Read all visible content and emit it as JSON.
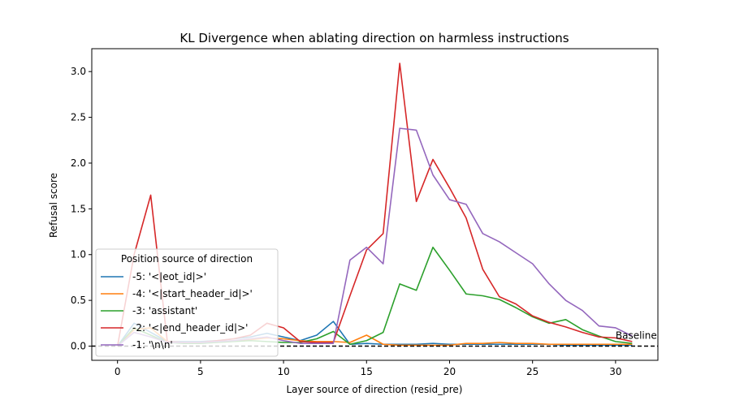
{
  "chart_data": {
    "type": "line",
    "title": "KL Divergence when ablating direction on harmless instructions",
    "xlabel": "Layer source of direction (resid_pre)",
    "ylabel": "Refusal score",
    "xlim": [
      -1.55,
      32.55
    ],
    "ylim": [
      -0.155,
      3.25
    ],
    "xticks": [
      0,
      5,
      10,
      15,
      20,
      25,
      30
    ],
    "yticks": [
      0.0,
      0.5,
      1.0,
      1.5,
      2.0,
      2.5,
      3.0
    ],
    "grid": false,
    "legend": {
      "title": "Position source of direction",
      "placement": "lower-left"
    },
    "baseline": {
      "value": 0,
      "label": "Baseline",
      "style": "dashed",
      "color": "#000000"
    },
    "x": [
      0,
      1,
      2,
      3,
      4,
      5,
      6,
      7,
      8,
      9,
      10,
      11,
      12,
      13,
      14,
      15,
      16,
      17,
      18,
      19,
      20,
      21,
      22,
      23,
      24,
      25,
      26,
      27,
      28,
      29,
      30,
      31
    ],
    "series": [
      {
        "name": "-5: '<|eot_id|>'",
        "color": "#1f77b4",
        "values": [
          0.0,
          0.25,
          0.15,
          0.05,
          0.05,
          0.05,
          0.06,
          0.08,
          0.1,
          0.14,
          0.1,
          0.06,
          0.12,
          0.27,
          0.02,
          0.03,
          0.02,
          0.02,
          0.02,
          0.03,
          0.02,
          0.02,
          0.02,
          0.02,
          0.02,
          0.02,
          0.02,
          0.01,
          0.01,
          0.01,
          0.01,
          0.01
        ]
      },
      {
        "name": "-4: '<|start_header_id|>'",
        "color": "#ff7f0e",
        "values": [
          0.0,
          0.18,
          0.2,
          0.05,
          0.04,
          0.04,
          0.05,
          0.06,
          0.07,
          0.09,
          0.08,
          0.06,
          0.05,
          0.05,
          0.04,
          0.12,
          0.02,
          0.01,
          0.01,
          0.01,
          0.01,
          0.03,
          0.03,
          0.04,
          0.03,
          0.03,
          0.02,
          0.02,
          0.02,
          0.02,
          0.02,
          0.02
        ]
      },
      {
        "name": "-3: 'assistant'",
        "color": "#2ca02c",
        "values": [
          0.0,
          0.2,
          0.12,
          0.04,
          0.03,
          0.03,
          0.04,
          0.05,
          0.06,
          0.05,
          0.04,
          0.04,
          0.08,
          0.16,
          0.02,
          0.06,
          0.15,
          0.68,
          0.61,
          1.08,
          0.83,
          0.57,
          0.55,
          0.51,
          0.42,
          0.32,
          0.25,
          0.29,
          0.18,
          0.11,
          0.05,
          0.03
        ]
      },
      {
        "name": "-2: '<|end_header_id|>'",
        "color": "#d62728",
        "values": [
          0.0,
          1.0,
          1.65,
          0.05,
          0.04,
          0.04,
          0.06,
          0.08,
          0.12,
          0.25,
          0.2,
          0.05,
          0.04,
          0.04,
          0.55,
          1.05,
          1.23,
          3.09,
          1.58,
          2.04,
          1.73,
          1.4,
          0.84,
          0.54,
          0.46,
          0.33,
          0.26,
          0.21,
          0.15,
          0.1,
          0.09,
          0.05
        ]
      },
      {
        "name": "-1: '\\n\\n'",
        "color": "#9467bd",
        "values": [
          0.0,
          0.15,
          0.1,
          0.04,
          0.04,
          0.04,
          0.05,
          0.06,
          0.08,
          0.1,
          0.06,
          0.03,
          0.03,
          0.03,
          0.94,
          1.08,
          0.9,
          2.38,
          2.36,
          1.87,
          1.6,
          1.55,
          1.23,
          1.14,
          1.02,
          0.9,
          0.68,
          0.5,
          0.39,
          0.22,
          0.2,
          0.11
        ]
      }
    ]
  }
}
